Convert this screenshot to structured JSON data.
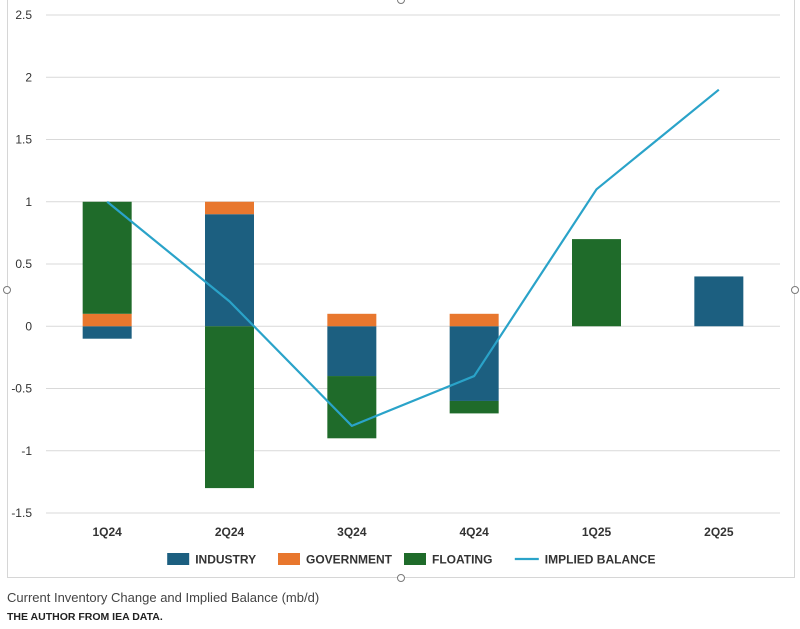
{
  "chart_data": {
    "type": "bar",
    "stacked": true,
    "categories": [
      "1Q24",
      "2Q24",
      "3Q24",
      "4Q24",
      "1Q25",
      "2Q25"
    ],
    "series": [
      {
        "name": "INDUSTRY",
        "kind": "bar",
        "color": "#1c5f80",
        "values": [
          -0.1,
          0.9,
          -0.4,
          -0.6,
          0,
          0.4
        ]
      },
      {
        "name": "GOVERNMENT",
        "kind": "bar",
        "color": "#e8772e",
        "values": [
          0.1,
          0.1,
          0.1,
          0.1,
          0,
          0
        ]
      },
      {
        "name": "FLOATING",
        "kind": "bar",
        "color": "#1f6b2a",
        "values": [
          0.9,
          -1.3,
          -0.5,
          -0.1,
          0.7,
          0
        ]
      },
      {
        "name": "IMPLIED BALANCE",
        "kind": "line",
        "color": "#2aa3c9",
        "values": [
          1.0,
          0.2,
          -0.8,
          -0.4,
          1.1,
          1.9
        ]
      }
    ],
    "ylim": [
      -1.5,
      2.5
    ],
    "yticks": [
      "2.5",
      "2",
      "1.5",
      "1",
      "0.5",
      "0",
      "-0.5",
      "-1",
      "-1.5"
    ],
    "ytick_values": [
      2.5,
      2,
      1.5,
      1,
      0.5,
      0,
      -0.5,
      -1,
      -1.5
    ],
    "grid": true,
    "legend_position": "bottom",
    "title": "Current Inventory Change and Implied Balance (mb/d)",
    "source": "THE AUTHOR FROM IEA DATA."
  }
}
